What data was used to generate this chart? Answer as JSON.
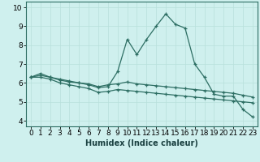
{
  "title": "",
  "xlabel": "Humidex (Indice chaleur)",
  "background_color": "#cff0ee",
  "line_color": "#2d6e63",
  "x_values": [
    0,
    1,
    2,
    3,
    4,
    5,
    6,
    7,
    8,
    9,
    10,
    11,
    12,
    13,
    14,
    15,
    16,
    17,
    18,
    19,
    20,
    21,
    22,
    23
  ],
  "line1": [
    6.3,
    6.5,
    6.3,
    6.2,
    6.1,
    6.0,
    5.9,
    5.75,
    5.8,
    6.6,
    8.3,
    7.5,
    8.3,
    9.0,
    9.65,
    9.1,
    8.9,
    7.0,
    6.3,
    5.4,
    5.3,
    5.3,
    4.6,
    4.2
  ],
  "line2": [
    6.3,
    6.4,
    6.3,
    6.15,
    6.05,
    6.0,
    5.95,
    5.8,
    5.9,
    5.95,
    6.05,
    5.95,
    5.9,
    5.85,
    5.8,
    5.75,
    5.7,
    5.65,
    5.6,
    5.55,
    5.5,
    5.45,
    5.35,
    5.25
  ],
  "line3": [
    6.3,
    6.3,
    6.2,
    6.0,
    5.9,
    5.8,
    5.7,
    5.5,
    5.55,
    5.65,
    5.6,
    5.55,
    5.5,
    5.45,
    5.4,
    5.35,
    5.3,
    5.25,
    5.2,
    5.15,
    5.1,
    5.05,
    5.0,
    4.95
  ],
  "ylim": [
    3.7,
    10.3
  ],
  "xlim": [
    -0.5,
    23.5
  ],
  "yticks": [
    4,
    5,
    6,
    7,
    8,
    9,
    10
  ],
  "xticks": [
    0,
    1,
    2,
    3,
    4,
    5,
    6,
    7,
    8,
    9,
    10,
    11,
    12,
    13,
    14,
    15,
    16,
    17,
    18,
    19,
    20,
    21,
    22,
    23
  ],
  "grid_color": "#b8e0db",
  "xlabel_fontsize": 7,
  "axis_tick_fontsize": 6.5
}
